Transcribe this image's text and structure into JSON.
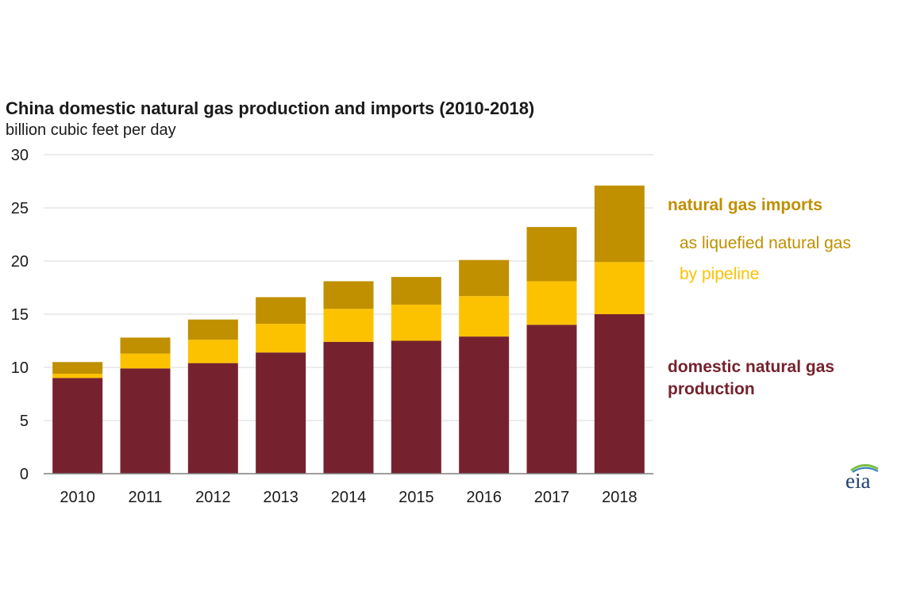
{
  "title": "China domestic natural gas production and imports (2010-2018)",
  "subtitle": "billion cubic feet per day",
  "colors": {
    "domestic": "#76222e",
    "pipeline": "#fcc200",
    "lng": "#c09000",
    "grid": "#d9d9d9",
    "axis": "#7f7f7f",
    "text": "#1a1a1a"
  },
  "legend": {
    "imports": "natural gas imports",
    "lng": "as liquefied natural gas",
    "pipeline": "by pipeline",
    "domestic_line1": "domestic natural gas",
    "domestic_line2": "production"
  },
  "logo": {
    "text": "eia",
    "icon": "eia-logo"
  },
  "chart_data": {
    "type": "bar",
    "stacked": true,
    "title": "China domestic natural gas production and imports (2010-2018)",
    "ylabel": "billion cubic feet per day",
    "xlabel": "",
    "ylim": [
      0,
      30
    ],
    "yticks": [
      0,
      5,
      10,
      15,
      20,
      25,
      30
    ],
    "grid": true,
    "legend_position": "right",
    "categories": [
      "2010",
      "2011",
      "2012",
      "2013",
      "2014",
      "2015",
      "2016",
      "2017",
      "2018"
    ],
    "series": [
      {
        "name": "domestic natural gas production",
        "color": "#76222e",
        "values": [
          9.0,
          9.9,
          10.4,
          11.4,
          12.4,
          12.5,
          12.9,
          14.0,
          15.0
        ]
      },
      {
        "name": "by pipeline",
        "color": "#fcc200",
        "values": [
          0.4,
          1.4,
          2.2,
          2.7,
          3.1,
          3.4,
          3.8,
          4.1,
          4.9
        ]
      },
      {
        "name": "as liquefied natural gas",
        "color": "#c09000",
        "values": [
          1.1,
          1.5,
          1.9,
          2.5,
          2.6,
          2.6,
          3.4,
          5.1,
          7.2
        ]
      }
    ]
  }
}
